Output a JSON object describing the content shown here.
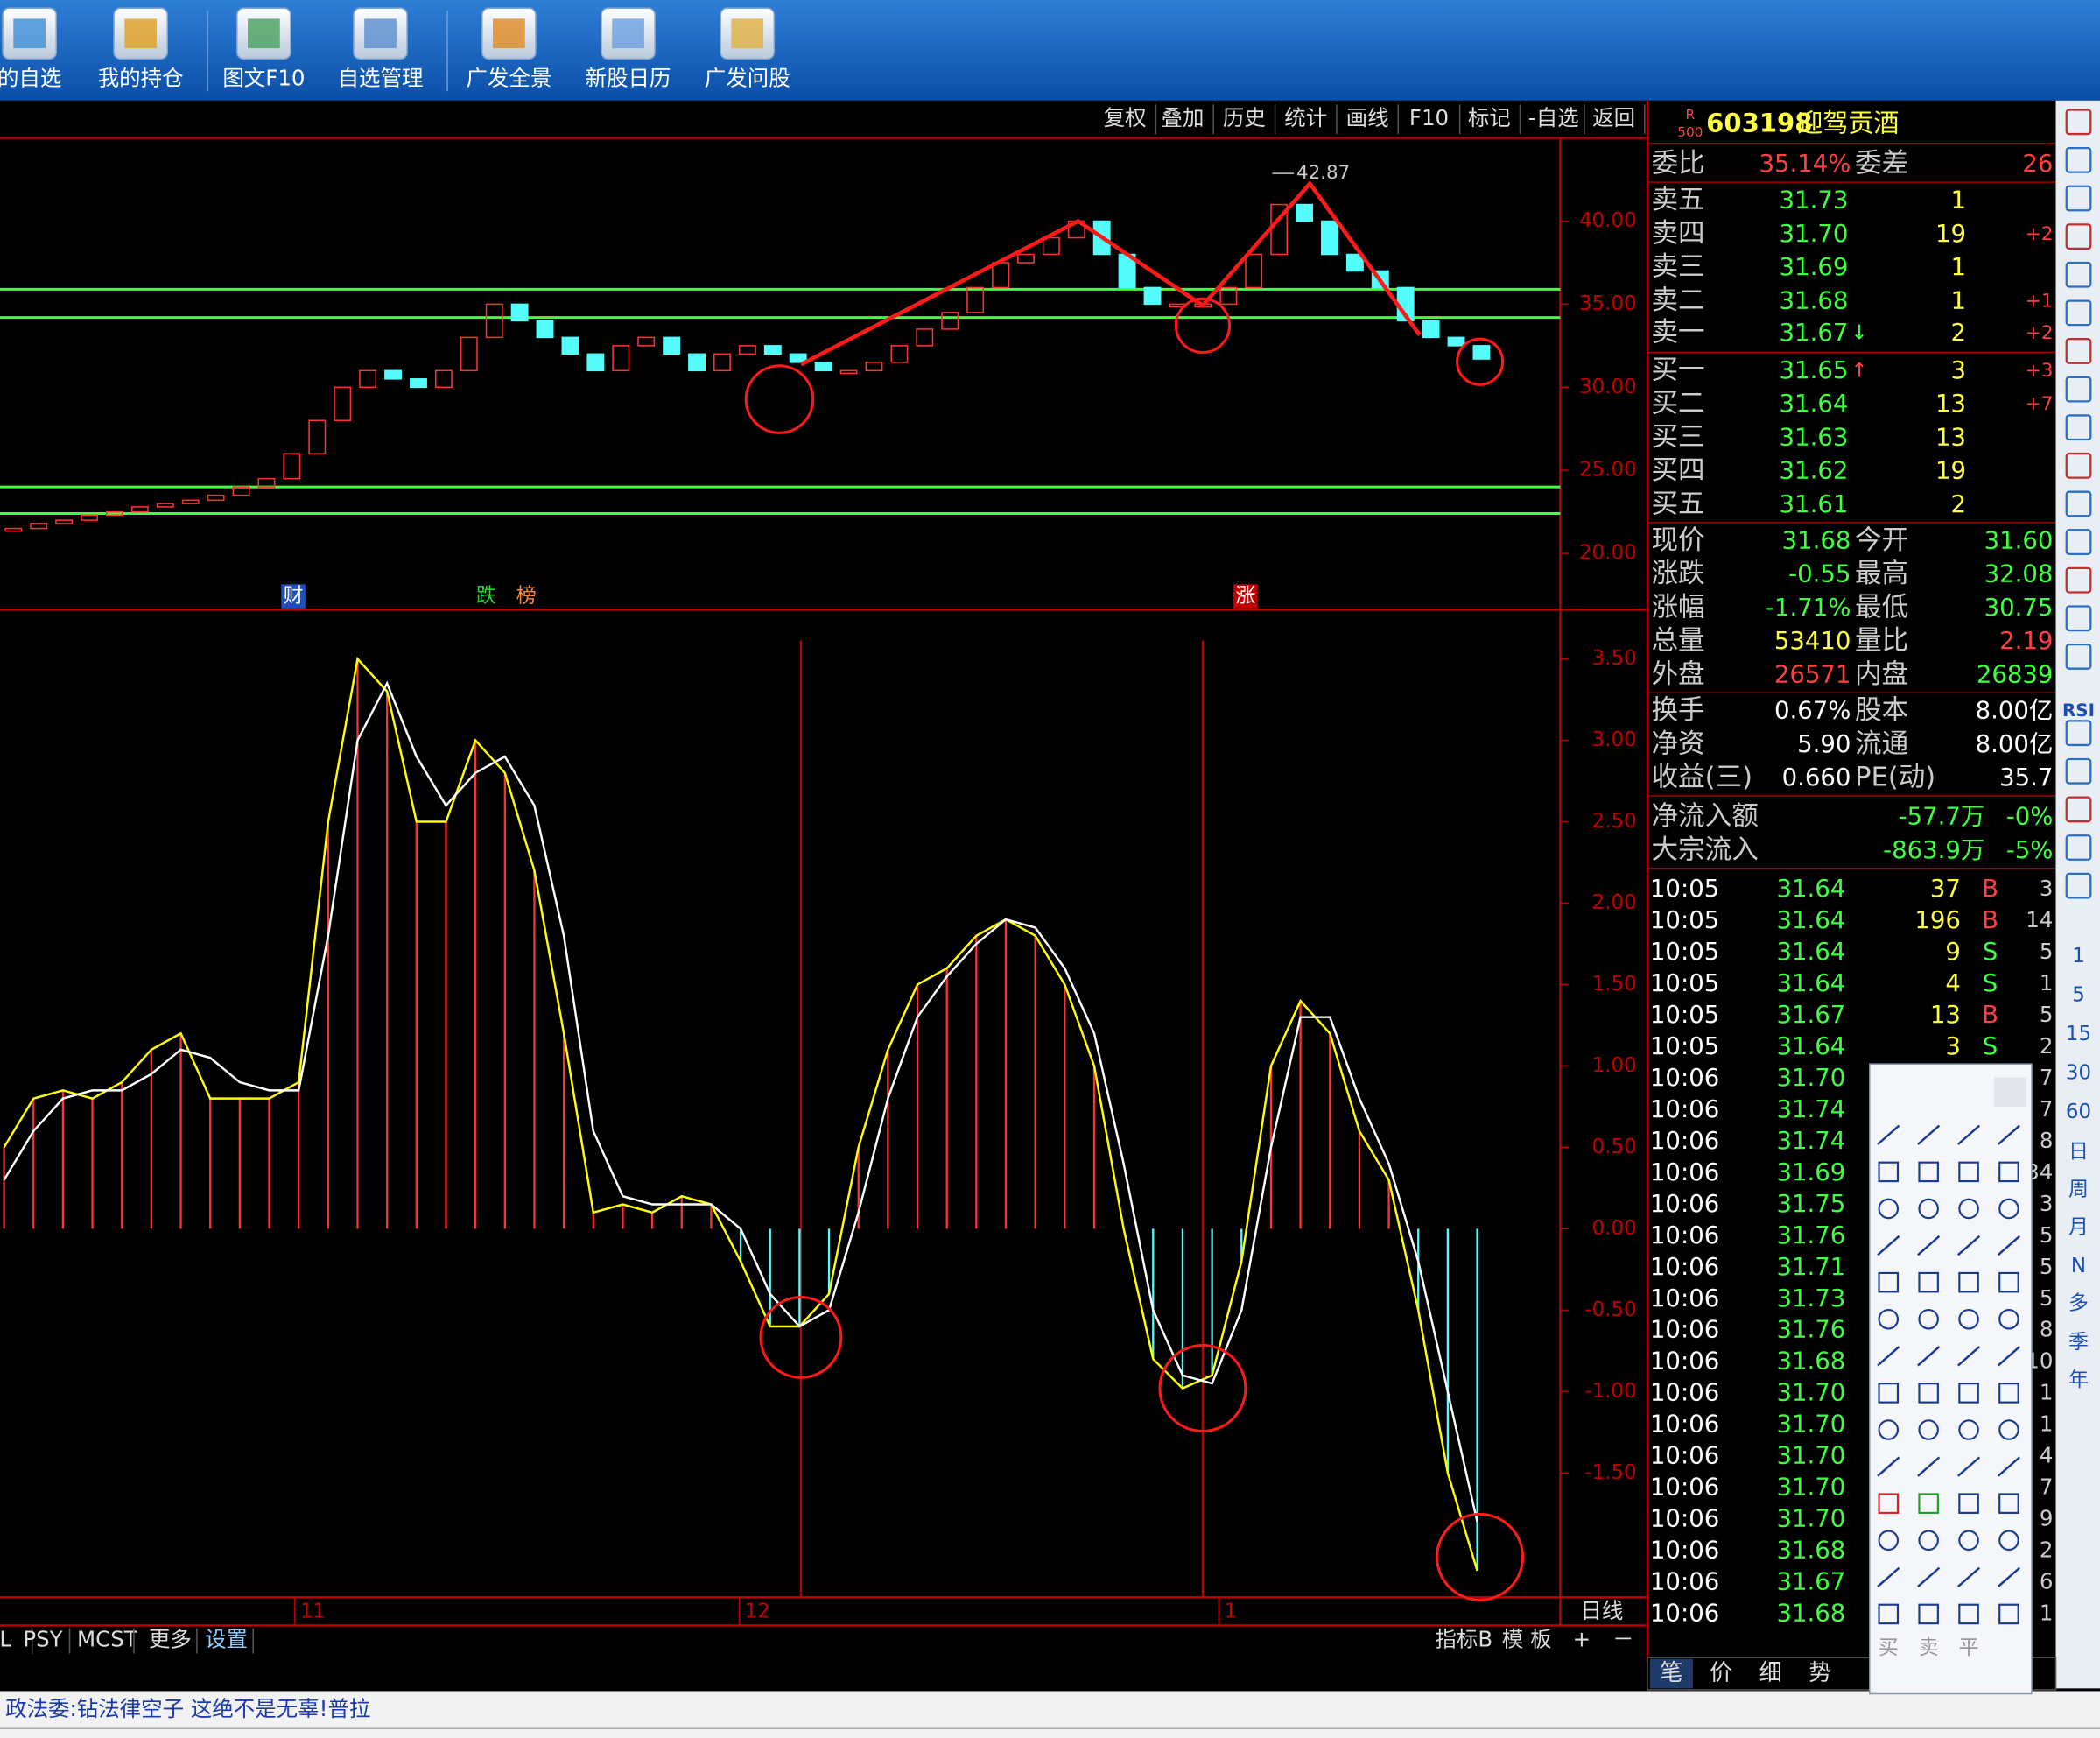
{
  "toolbar": [
    "的自选",
    "我的持仓",
    "图文F10",
    "自选管理",
    "广发全景",
    "新股日历",
    "广发问股"
  ],
  "menu": [
    "复权",
    "叠加",
    "历史",
    "统计",
    "画线",
    "F10",
    "标记",
    "-自选",
    "返回"
  ],
  "chart_data": [
    {
      "type": "candlestick",
      "close": [
        21.5,
        21.8,
        22,
        22.3,
        22.5,
        22.8,
        23,
        23.2,
        23.5,
        24,
        24.5,
        26,
        28,
        30,
        31,
        30.5,
        30,
        31,
        33,
        35,
        34,
        33,
        32,
        31,
        32.5,
        33,
        32,
        31,
        32,
        32.5,
        32,
        31.5,
        31,
        31,
        31.5,
        32.5,
        33.5,
        34.5,
        36,
        37.5,
        38,
        39,
        40,
        38,
        36,
        35,
        35,
        35,
        36,
        38,
        41,
        40,
        38,
        37,
        36,
        34,
        33,
        32.5,
        31.7
      ],
      "ylim": [
        17.7,
        44.8
      ],
      "yticks": [
        {
          "value": 40,
          "label": "40.00"
        },
        {
          "value": 35,
          "label": "35.00"
        },
        {
          "value": 30,
          "label": "30.00"
        },
        {
          "value": 25,
          "label": "25.00"
        },
        {
          "value": 20,
          "label": "20.00"
        }
      ],
      "levels": [
        35.9,
        34.2,
        24.0,
        22.4
      ],
      "high": 42.87,
      "markers": [
        "财",
        "跌",
        "榜",
        "涨"
      ]
    },
    {
      "type": "indicator",
      "series": [
        {
          "color": "#ffff00",
          "values": [
            0.5,
            0.8,
            0.85,
            0.8,
            0.9,
            1.1,
            1.2,
            0.8,
            0.8,
            0.8,
            0.9,
            2.5,
            3.5,
            3.3,
            2.5,
            2.5,
            3.0,
            2.8,
            2.2,
            1.2,
            0.1,
            0.15,
            0.1,
            0.2,
            0.15,
            -0.2,
            -0.6,
            -0.6,
            -0.4,
            0.5,
            1.1,
            1.5,
            1.6,
            1.8,
            1.9,
            1.8,
            1.5,
            1.0,
            0.0,
            -0.8,
            -0.98,
            -0.9,
            -0.2,
            1.0,
            1.4,
            1.2,
            0.6,
            0.3,
            -0.5,
            -1.5,
            -2.1
          ]
        },
        {
          "color": "#ffffff",
          "values": [
            0.3,
            0.6,
            0.8,
            0.85,
            0.85,
            0.95,
            1.1,
            1.05,
            0.9,
            0.85,
            0.85,
            1.8,
            3.0,
            3.35,
            2.9,
            2.6,
            2.8,
            2.9,
            2.6,
            1.8,
            0.6,
            0.2,
            0.15,
            0.15,
            0.15,
            0.0,
            -0.4,
            -0.6,
            -0.5,
            0.1,
            0.8,
            1.3,
            1.55,
            1.75,
            1.9,
            1.85,
            1.6,
            1.2,
            0.4,
            -0.5,
            -0.9,
            -0.95,
            -0.5,
            0.5,
            1.3,
            1.3,
            0.8,
            0.4,
            -0.2,
            -1.0,
            -1.8
          ]
        }
      ],
      "ylim": [
        -2.247,
        3.613
      ],
      "yticks": [
        {
          "value": 3.5,
          "label": "3.50"
        },
        {
          "value": 3,
          "label": "3.00"
        },
        {
          "value": 2.5,
          "label": "2.50"
        },
        {
          "value": 2,
          "label": "2.00"
        },
        {
          "value": 1.5,
          "label": "1.50"
        },
        {
          "value": 1,
          "label": "1.00"
        },
        {
          "value": 0.5,
          "label": "0.50"
        },
        {
          "value": 0,
          "label": "0.00"
        },
        {
          "value": -0.5,
          "label": "-0.50"
        },
        {
          "value": -1,
          "label": "-1.00"
        },
        {
          "value": -1.5,
          "label": "-1.50"
        }
      ],
      "x_labels": [
        "11",
        "12",
        "1"
      ],
      "period": "日线"
    }
  ],
  "tabs": [
    "L",
    "PSY",
    "MCST",
    "更多",
    "设置"
  ],
  "tabs_right": [
    "指标B",
    "模 板",
    "+",
    "－"
  ],
  "stock": {
    "badge_top": "R",
    "badge_bottom": "500",
    "code": "603198",
    "name": "迎驾贡酒"
  },
  "ratio": {
    "label": "委比",
    "value": "35.14%",
    "diff_label": "委差",
    "diff": "26"
  },
  "asks": [
    {
      "label": "卖五",
      "price": "31.73",
      "vol": "1"
    },
    {
      "label": "卖四",
      "price": "31.70",
      "vol": "19",
      "chg": "+2"
    },
    {
      "label": "卖三",
      "price": "31.69",
      "vol": "1"
    },
    {
      "label": "卖二",
      "price": "31.68",
      "vol": "1",
      "chg": "+1"
    },
    {
      "label": "卖一",
      "price": "31.67",
      "arrow": "↓",
      "vol": "2",
      "chg": "+2"
    }
  ],
  "bids": [
    {
      "label": "买一",
      "price": "31.65",
      "arrow": "↑",
      "vol": "3",
      "chg": "+3"
    },
    {
      "label": "买二",
      "price": "31.64",
      "vol": "13",
      "chg": "+7"
    },
    {
      "label": "买三",
      "price": "31.63",
      "vol": "13"
    },
    {
      "label": "买四",
      "price": "31.62",
      "vol": "19"
    },
    {
      "label": "买五",
      "price": "31.61",
      "vol": "2"
    }
  ],
  "quote": [
    [
      "现价",
      "31.68",
      "今开",
      "31.60"
    ],
    [
      "涨跌",
      "-0.55",
      "最高",
      "32.08"
    ],
    [
      "涨幅",
      "-1.71%",
      "最低",
      "30.75"
    ],
    [
      "总量",
      "53410",
      "量比",
      "2.19"
    ],
    [
      "外盘",
      "26571",
      "内盘",
      "26839"
    ],
    [
      "换手",
      "0.67%",
      "股本",
      "8.00亿"
    ],
    [
      "净资",
      "5.90",
      "流通",
      "8.00亿"
    ],
    [
      "收益(三)",
      "0.660",
      "PE(动)",
      "35.7"
    ],
    [
      "净流入额",
      "-57.7万",
      "-0%"
    ],
    [
      "大宗流入",
      "-863.9万",
      "-5%"
    ]
  ],
  "trades": [
    {
      "time": "10:05",
      "price": "31.64",
      "vol": "37",
      "side": "B",
      "n": "3"
    },
    {
      "time": "10:05",
      "price": "31.64",
      "vol": "196",
      "side": "B",
      "n": "14"
    },
    {
      "time": "10:05",
      "price": "31.64",
      "vol": "9",
      "side": "S",
      "n": "5"
    },
    {
      "time": "10:05",
      "price": "31.64",
      "vol": "4",
      "side": "S",
      "n": "1"
    },
    {
      "time": "10:05",
      "price": "31.67",
      "vol": "13",
      "side": "B",
      "n": "5"
    },
    {
      "time": "10:05",
      "price": "31.64",
      "vol": "3",
      "side": "S",
      "n": "2"
    },
    {
      "time": "10:06",
      "price": "31.70",
      "n": "7"
    },
    {
      "time": "10:06",
      "price": "31.74",
      "n": "7"
    },
    {
      "time": "10:06",
      "price": "31.74",
      "n": "8"
    },
    {
      "time": "10:06",
      "price": "31.69",
      "n": "34"
    },
    {
      "time": "10:06",
      "price": "31.75",
      "n": "3"
    },
    {
      "time": "10:06",
      "price": "31.76",
      "n": "5"
    },
    {
      "time": "10:06",
      "price": "31.71",
      "n": "5"
    },
    {
      "time": "10:06",
      "price": "31.73",
      "n": "5"
    },
    {
      "time": "10:06",
      "price": "31.76",
      "n": "8"
    },
    {
      "time": "10:06",
      "price": "31.68",
      "n": "10"
    },
    {
      "time": "10:06",
      "price": "31.70",
      "n": "1"
    },
    {
      "time": "10:06",
      "price": "31.70",
      "n": "1"
    },
    {
      "time": "10:06",
      "price": "31.70",
      "n": "4"
    },
    {
      "time": "10:06",
      "price": "31.70",
      "n": "7"
    },
    {
      "time": "10:06",
      "price": "31.70",
      "n": "9"
    },
    {
      "time": "10:06",
      "price": "31.68",
      "n": "2"
    },
    {
      "time": "10:06",
      "price": "31.67",
      "n": "6"
    },
    {
      "time": "10:06",
      "price": "31.68",
      "n": "1"
    }
  ],
  "panel_tabs": [
    "笔",
    "价",
    "细",
    "势"
  ],
  "sidebar": [
    "RSI",
    "1",
    "5",
    "15",
    "30",
    "60",
    "日",
    "周",
    "月",
    "N",
    "多",
    "季",
    "年"
  ],
  "draw_tools": [
    "买",
    "卖",
    "平"
  ],
  "ticker": "政法委:钻法律空子 这绝不是无辜!普拉"
}
